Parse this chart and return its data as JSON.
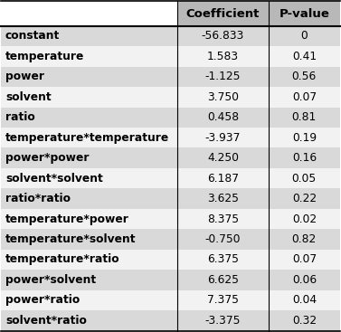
{
  "rows": [
    [
      "constant",
      "-56.833",
      "0"
    ],
    [
      "temperature",
      "1.583",
      "0.41"
    ],
    [
      "power",
      "-1.125",
      "0.56"
    ],
    [
      "solvent",
      "3.750",
      "0.07"
    ],
    [
      "ratio",
      "0.458",
      "0.81"
    ],
    [
      "temperature*temperature",
      "-3.937",
      "0.19"
    ],
    [
      "power*power",
      "4.250",
      "0.16"
    ],
    [
      "solvent*solvent",
      "6.187",
      "0.05"
    ],
    [
      "ratio*ratio",
      "3.625",
      "0.22"
    ],
    [
      "temperature*power",
      "8.375",
      "0.02"
    ],
    [
      "temperature*solvent",
      "-0.750",
      "0.82"
    ],
    [
      "temperature*ratio",
      "6.375",
      "0.07"
    ],
    [
      "power*solvent",
      "6.625",
      "0.06"
    ],
    [
      "power*ratio",
      "7.375",
      "0.04"
    ],
    [
      "solvent*ratio",
      "-3.375",
      "0.32"
    ]
  ],
  "col_headers": [
    "",
    "Coefficient",
    "P-value"
  ],
  "header_bg": "#b8b8b8",
  "row_bg_odd": "#d9d9d9",
  "row_bg_even": "#f2f2f2",
  "header_font_size": 9.5,
  "row_font_size": 8.8,
  "fig_width": 3.77,
  "fig_height": 3.67
}
